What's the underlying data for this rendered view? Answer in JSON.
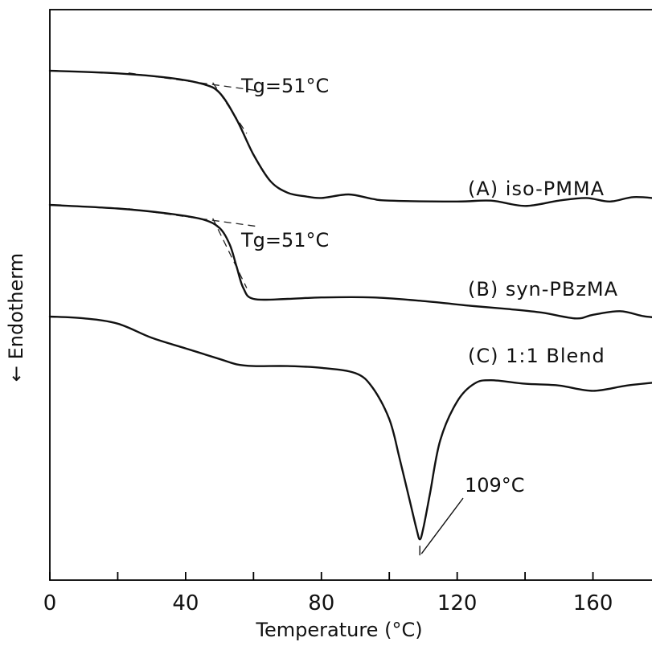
{
  "chart_data": {
    "type": "line",
    "xlabel": "Temperature (°C)",
    "ylabel": "← Endotherm",
    "xlim": [
      0,
      180
    ],
    "x_ticks": [
      0,
      40,
      80,
      120,
      160
    ],
    "grid": false,
    "series": [
      {
        "name": "(A) iso-PMMA",
        "x": [
          0,
          20,
          35,
          45,
          50,
          55,
          60,
          65,
          70,
          75,
          80,
          88,
          95,
          100,
          120,
          130,
          140,
          150,
          158,
          165,
          172,
          180
        ],
        "y": [
          0,
          -0.03,
          -0.08,
          -0.15,
          -0.25,
          -0.55,
          -0.95,
          -1.25,
          -1.38,
          -1.42,
          -1.44,
          -1.4,
          -1.45,
          -1.47,
          -1.48,
          -1.47,
          -1.53,
          -1.47,
          -1.44,
          -1.48,
          -1.43,
          -1.45
        ]
      },
      {
        "name": "(B) syn-PBzMA",
        "x": [
          0,
          20,
          35,
          45,
          50,
          53,
          55,
          57,
          60,
          70,
          80,
          95,
          110,
          125,
          135,
          145,
          155,
          160,
          168,
          175,
          180
        ],
        "y": [
          0,
          -0.05,
          -0.12,
          -0.2,
          -0.32,
          -0.55,
          -0.85,
          -1.15,
          -1.3,
          -1.3,
          -1.28,
          -1.28,
          -1.33,
          -1.4,
          -1.44,
          -1.49,
          -1.57,
          -1.52,
          -1.47,
          -1.54,
          -1.56
        ]
      },
      {
        "name": "(C) 1:1 Blend",
        "x": [
          0,
          10,
          20,
          30,
          40,
          50,
          55,
          60,
          70,
          80,
          90,
          95,
          100,
          103,
          106,
          108,
          109,
          110,
          112,
          115,
          120,
          125,
          130,
          140,
          150,
          160,
          170,
          180
        ],
        "y": [
          0,
          -0.05,
          -0.2,
          -0.6,
          -0.9,
          -1.2,
          -1.35,
          -1.4,
          -1.4,
          -1.45,
          -1.6,
          -2.0,
          -2.9,
          -4.0,
          -5.2,
          -6.0,
          -6.3,
          -6.0,
          -5.0,
          -3.5,
          -2.4,
          -1.9,
          -1.8,
          -1.9,
          -1.95,
          -2.1,
          -1.95,
          -1.85
        ]
      }
    ],
    "annotations": [
      {
        "text": "Tg=51°C",
        "series": "(A) iso-PMMA",
        "x": 51
      },
      {
        "text": "Tg=51°C",
        "series": "(B) syn-PBzMA",
        "x": 51
      },
      {
        "text": "109°C",
        "series": "(C) 1:1 Blend",
        "x": 109
      }
    ],
    "note": "y values are relative heat-flow offsets in arbitrary units (no y-axis scale printed); curves are vertically stacked"
  }
}
